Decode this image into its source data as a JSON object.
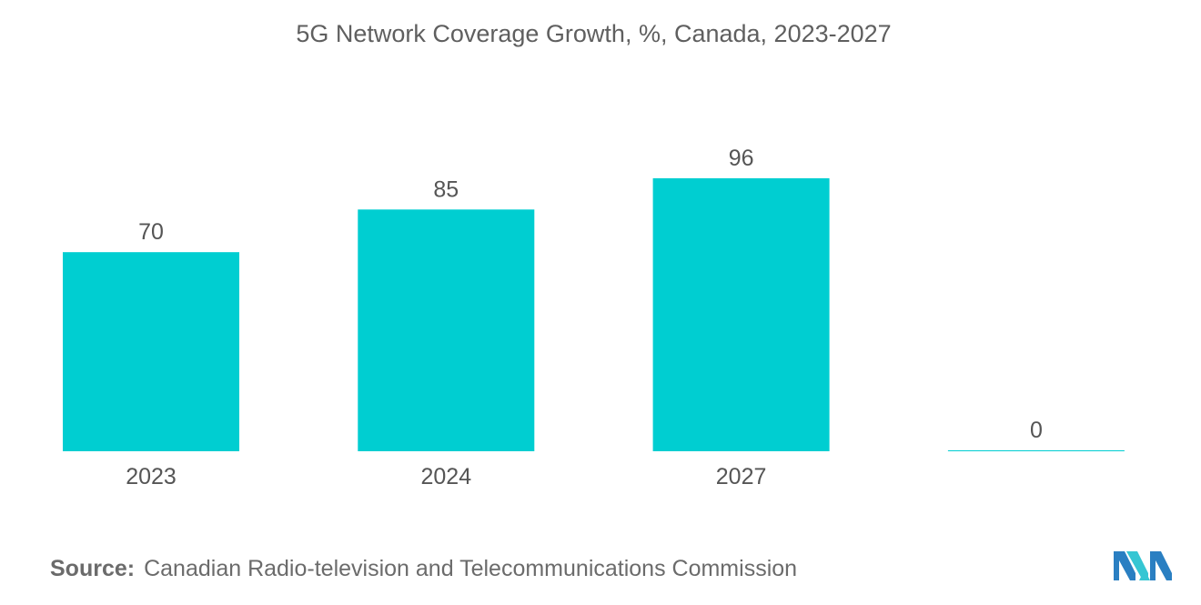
{
  "chart_data": {
    "type": "bar",
    "title": "5G Network Coverage Growth, %, Canada, 2023-2027",
    "categories": [
      "2023",
      "2024",
      "2027",
      ""
    ],
    "values": [
      70,
      85,
      96,
      0
    ],
    "value_labels": [
      "70",
      "85",
      "96",
      "0"
    ],
    "xlabel": "",
    "ylabel": "",
    "ylim": [
      0,
      100
    ],
    "grid": false,
    "bar_color": "#00CED1"
  },
  "source": {
    "label": "Source:",
    "text": "Canadian Radio-television and Telecommunications Commission"
  },
  "logo": {
    "icon": "mordor-intelligence-logo-icon",
    "colors": [
      "#2a7fc2",
      "#36c6d3"
    ]
  }
}
